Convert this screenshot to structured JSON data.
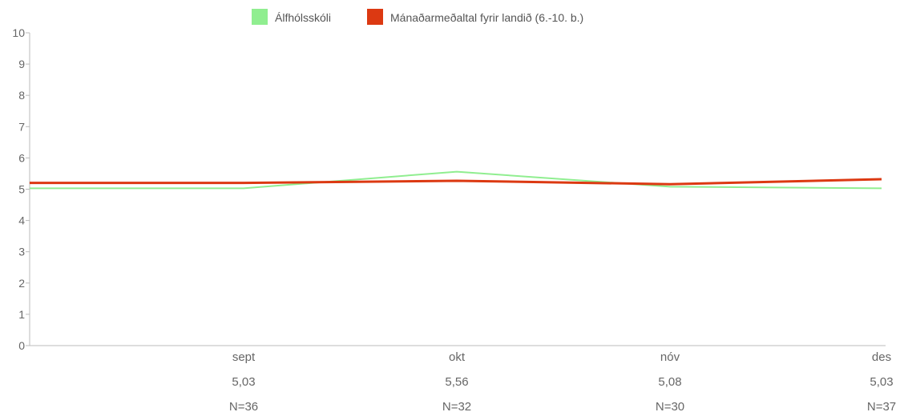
{
  "chart_data": {
    "type": "line",
    "categories": [
      "sept",
      "okt",
      "nóv",
      "des"
    ],
    "series": [
      {
        "name": "Álfhólsskóli",
        "color": "#90ee90",
        "values": [
          5.03,
          5.56,
          5.08,
          5.03
        ]
      },
      {
        "name": "Mánaðarmeðaltal fyrir landið (6.-10. b.)",
        "color": "#dc3912",
        "values": [
          5.2,
          5.27,
          5.16,
          5.32
        ]
      }
    ],
    "category_value_labels": [
      "5,03",
      "5,56",
      "5,08",
      "5,03"
    ],
    "category_n_labels": [
      "N=36",
      "N=32",
      "N=30",
      "N=37"
    ],
    "yticks": [
      "0",
      "1",
      "2",
      "3",
      "4",
      "5",
      "6",
      "7",
      "8",
      "9",
      "10"
    ],
    "ylim": [
      0,
      10
    ],
    "legend_position": "top-center",
    "grid": false
  }
}
